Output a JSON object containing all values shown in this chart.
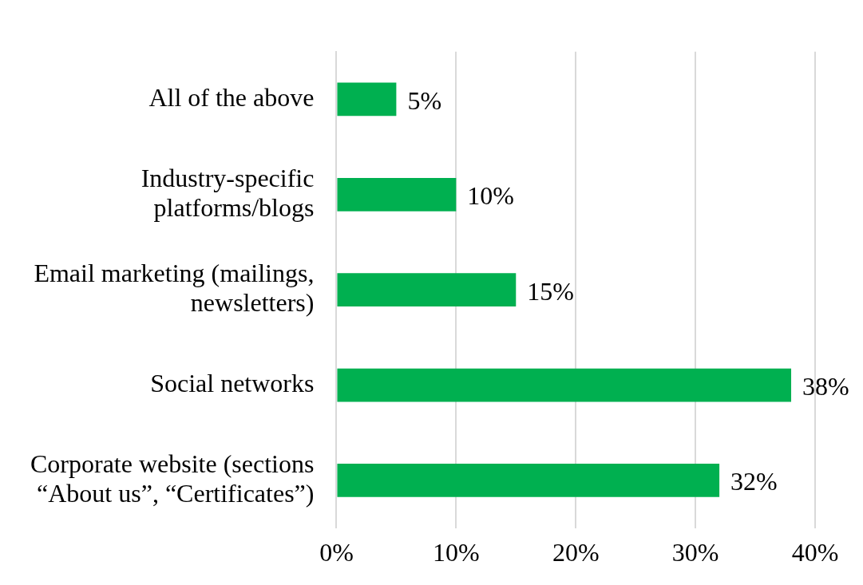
{
  "chart_data": {
    "type": "bar",
    "orientation": "horizontal",
    "categories": [
      "All of the above",
      "Industry-specific platforms/blogs",
      "Email marketing (mailings, newsletters)",
      "Social networks",
      "Corporate website (sections “About us”, “Certificates”)"
    ],
    "values": [
      5,
      10,
      15,
      38,
      32
    ],
    "color": "#00b050",
    "value_labels": [
      "5%",
      "10%",
      "15%",
      "38%",
      "32%"
    ],
    "xlim": [
      0,
      40
    ],
    "xticks": [
      {
        "value": 0,
        "label": "0%"
      },
      {
        "value": 10,
        "label": "10%"
      },
      {
        "value": 20,
        "label": "20%"
      },
      {
        "value": 30,
        "label": "30%"
      },
      {
        "value": 40,
        "label": "40%"
      }
    ],
    "grid": "x",
    "legend": false
  }
}
